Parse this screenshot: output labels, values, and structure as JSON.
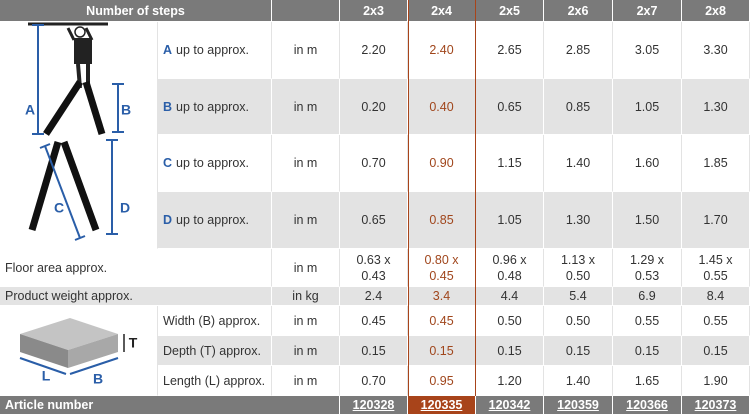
{
  "header": {
    "title": "Number of steps",
    "columns": [
      "2x3",
      "2x4",
      "2x5",
      "2x6",
      "2x7",
      "2x8"
    ]
  },
  "dimension_rows": [
    {
      "letter": "A",
      "label": "up to approx.",
      "unit": "in m",
      "values": [
        "2.20",
        "2.40",
        "2.65",
        "2.85",
        "3.05",
        "3.30"
      ]
    },
    {
      "letter": "B",
      "label": "up to approx.",
      "unit": "in m",
      "values": [
        "0.20",
        "0.40",
        "0.65",
        "0.85",
        "1.05",
        "1.30"
      ]
    },
    {
      "letter": "C",
      "label": "up to approx.",
      "unit": "in m",
      "values": [
        "0.70",
        "0.90",
        "1.15",
        "1.40",
        "1.60",
        "1.85"
      ]
    },
    {
      "letter": "D",
      "label": "up to approx.",
      "unit": "in m",
      "values": [
        "0.65",
        "0.85",
        "1.05",
        "1.30",
        "1.50",
        "1.70"
      ]
    }
  ],
  "floor_area": {
    "label": "Floor area approx.",
    "unit": "in m",
    "values": [
      [
        "0.63 x",
        "0.43"
      ],
      [
        "0.80 x",
        "0.45"
      ],
      [
        "0.96 x",
        "0.48"
      ],
      [
        "1.13 x",
        "0.50"
      ],
      [
        "1.29 x",
        "0.53"
      ],
      [
        "1.45 x",
        "0.55"
      ]
    ]
  },
  "product_weight": {
    "label": "Product weight approx.",
    "unit": "in kg",
    "values": [
      "2.4",
      "3.4",
      "4.4",
      "5.4",
      "6.9",
      "8.4"
    ]
  },
  "package_rows": [
    {
      "label": "Width (B) approx.",
      "unit": "in m",
      "values": [
        "0.45",
        "0.45",
        "0.50",
        "0.50",
        "0.55",
        "0.55"
      ]
    },
    {
      "label": "Depth (T) approx.",
      "unit": "in m",
      "values": [
        "0.15",
        "0.15",
        "0.15",
        "0.15",
        "0.15",
        "0.15"
      ]
    },
    {
      "label": "Length (L) approx.",
      "unit": "in m",
      "values": [
        "0.70",
        "0.95",
        "1.20",
        "1.40",
        "1.65",
        "1.90"
      ]
    }
  ],
  "article_number": {
    "label": "Article number",
    "values": [
      "120328",
      "120335",
      "120342",
      "120359",
      "120366",
      "120373"
    ]
  },
  "ladder_labels": [
    "A",
    "B",
    "C",
    "D"
  ],
  "box_labels": [
    "T",
    "L",
    "B"
  ]
}
